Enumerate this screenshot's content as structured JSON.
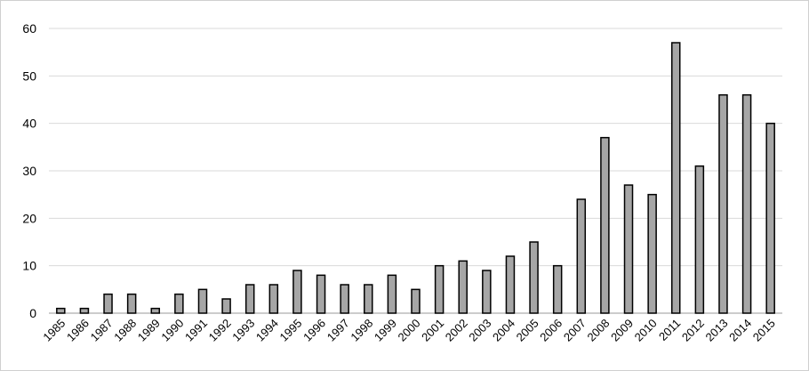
{
  "chart_data": {
    "type": "bar",
    "categories": [
      "1985",
      "1986",
      "1987",
      "1988",
      "1989",
      "1990",
      "1991",
      "1992",
      "1993",
      "1994",
      "1995",
      "1996",
      "1997",
      "1998",
      "1999",
      "2000",
      "2001",
      "2002",
      "2003",
      "2004",
      "2005",
      "2006",
      "2007",
      "2008",
      "2009",
      "2010",
      "2011",
      "2012",
      "2013",
      "2014",
      "2015"
    ],
    "values": [
      1,
      1,
      4,
      4,
      1,
      4,
      5,
      3,
      6,
      6,
      9,
      8,
      6,
      6,
      8,
      5,
      10,
      11,
      9,
      12,
      15,
      10,
      24,
      37,
      27,
      25,
      57,
      31,
      46,
      46,
      40
    ],
    "color": "#a6a6a6",
    "ylim": [
      0,
      60
    ],
    "yticks": [
      0,
      10,
      20,
      30,
      40,
      50,
      60
    ],
    "grid": true
  }
}
